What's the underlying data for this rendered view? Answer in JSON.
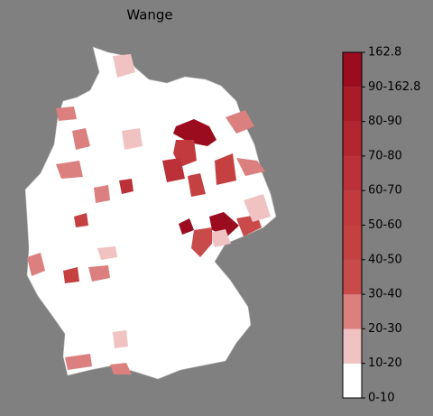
{
  "title": "Wange",
  "colorbar": {
    "labels": [
      "0-10",
      "10-20",
      "20-30",
      "30-40",
      "40-50",
      "50-60",
      "60-70",
      "70-80",
      "80-90",
      "90-162.8",
      "162.8"
    ],
    "colors": [
      "#ffffff",
      "#f0c2c2",
      "#db7f7f",
      "#c94a4a",
      "#c54040",
      "#c23a3e",
      "#bb3137",
      "#b3262f",
      "#aa1b28",
      "#9b0c1f"
    ]
  }
}
